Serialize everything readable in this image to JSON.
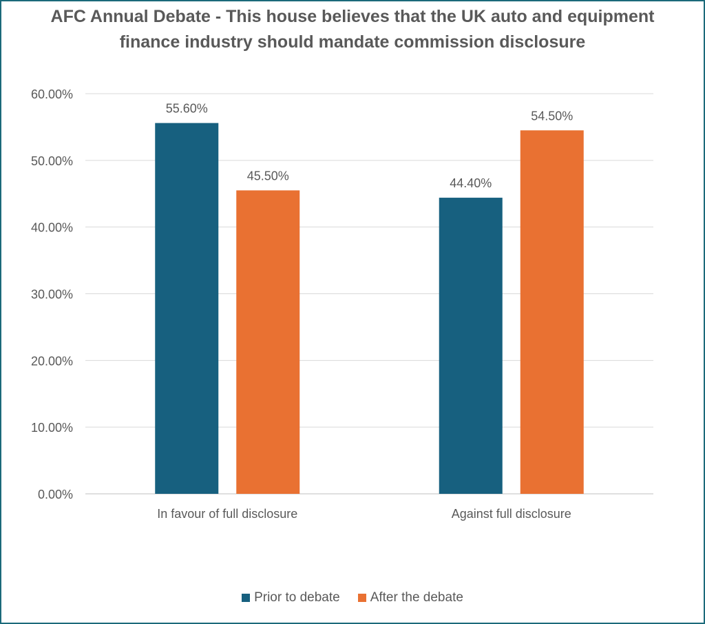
{
  "chart_data": {
    "type": "bar",
    "title": "AFC Annual Debate - This house believes that the UK auto and equipment finance industry should mandate commission disclosure",
    "categories": [
      "In favour of full disclosure",
      "Against full disclosure"
    ],
    "series": [
      {
        "name": "Prior to debate",
        "values": [
          55.6,
          44.4
        ],
        "color": "#17607f"
      },
      {
        "name": "After the debate",
        "values": [
          45.5,
          54.5
        ],
        "color": "#e97132"
      }
    ],
    "value_labels": [
      [
        "55.60%",
        "44.40%"
      ],
      [
        "45.50%",
        "54.50%"
      ]
    ],
    "y_ticks": [
      0,
      10,
      20,
      30,
      40,
      50,
      60
    ],
    "y_tick_labels": [
      "0.00%",
      "10.00%",
      "20.00%",
      "30.00%",
      "40.00%",
      "50.00%",
      "60.00%"
    ],
    "ylim": [
      0,
      60
    ],
    "grid": true,
    "legend_position": "bottom"
  }
}
